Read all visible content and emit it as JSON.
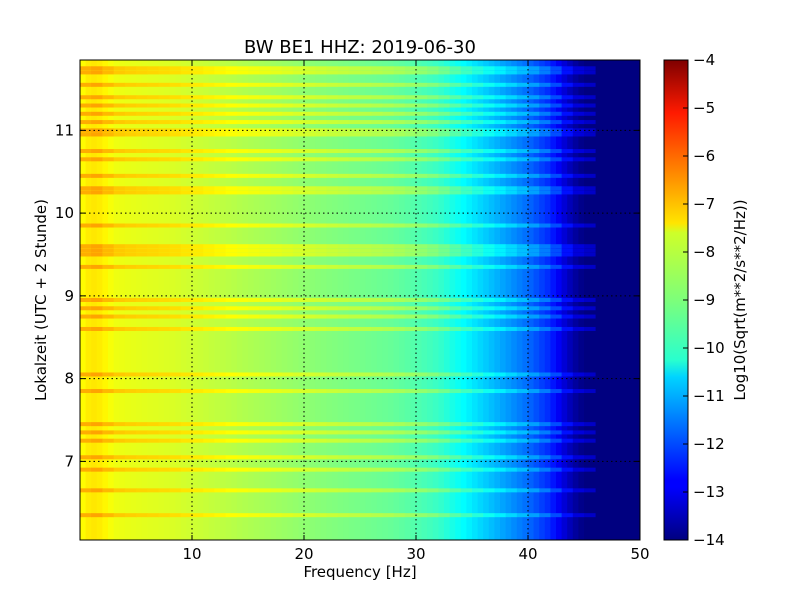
{
  "chart_data": {
    "type": "heatmap",
    "title": "BW BE1 HHZ: 2019-06-30",
    "xlabel": "Frequency [Hz]",
    "ylabel": "Lokalzeit (UTC + 2 Stunde)",
    "xlim": [
      0,
      50
    ],
    "ylim": [
      11.85,
      6.05
    ],
    "x_ticks": [
      10,
      20,
      30,
      40,
      50
    ],
    "y_ticks": [
      7,
      8,
      9,
      10,
      11
    ],
    "grid": true,
    "colormap": "jet",
    "colorbar": {
      "label": "Log10(Sqrt(m**2/s**2/Hz))",
      "range": [
        -14,
        -4
      ],
      "ticks": [
        -4,
        -5,
        -6,
        -7,
        -8,
        -9,
        -10,
        -11,
        -12,
        -13,
        -14
      ]
    },
    "spectrum_profile": {
      "frequency_hz": [
        0,
        1,
        2,
        3,
        5,
        8,
        12,
        16,
        20,
        24,
        28,
        30,
        32,
        34,
        36,
        38,
        40,
        42,
        43,
        44,
        45,
        50
      ],
      "log10_asd": [
        -7.8,
        -7.5,
        -7.6,
        -7.9,
        -8.0,
        -8.1,
        -8.35,
        -8.6,
        -8.85,
        -9.05,
        -9.25,
        -9.45,
        -9.7,
        -10.2,
        -10.7,
        -11.2,
        -11.7,
        -12.4,
        -13.0,
        -13.6,
        -14,
        -14
      ]
    },
    "broadband_noise_bands_hours": [
      6.35,
      6.65,
      6.9,
      7.05,
      7.25,
      7.35,
      7.45,
      7.85,
      8.05,
      8.6,
      8.75,
      8.85,
      8.95,
      9.35,
      9.5,
      9.55,
      9.6,
      9.85,
      10.25,
      10.3,
      10.45,
      10.65,
      10.75,
      10.95,
      11.0,
      11.1,
      11.2,
      11.3,
      11.4,
      11.55,
      11.7,
      11.75
    ]
  }
}
